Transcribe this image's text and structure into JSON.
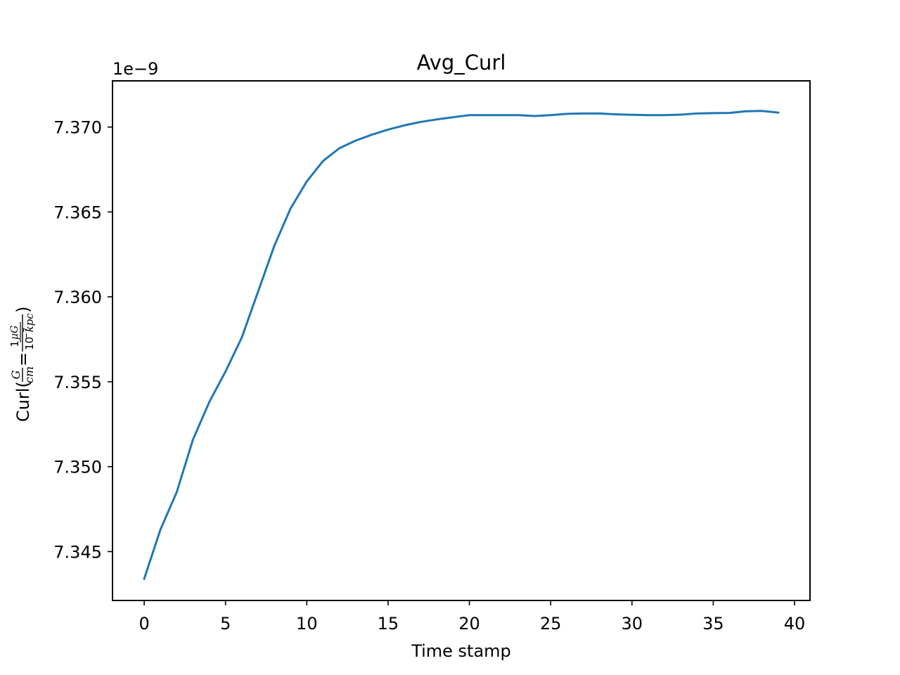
{
  "chart_data": {
    "type": "line",
    "title": "Avg_Curl",
    "xlabel": "Time stamp",
    "ylabel": {
      "prefix": "Curl(",
      "g": "G",
      "cm": "cm",
      "eq": "=",
      "one": "1",
      "mug": "μG",
      "tenpow": "10",
      "exp": "−7",
      "kpc": "kpc",
      "close": ")"
    },
    "offset_text": "1e−9",
    "xlim": [
      -1.95,
      40.95
    ],
    "ylim": [
      7.34212,
      7.37272
    ],
    "xticks": [
      0,
      5,
      10,
      15,
      20,
      25,
      30,
      35,
      40
    ],
    "xtick_labels": [
      "0",
      "5",
      "10",
      "15",
      "20",
      "25",
      "30",
      "35",
      "40"
    ],
    "yticks": [
      7.345,
      7.35,
      7.355,
      7.36,
      7.365,
      7.37
    ],
    "ytick_labels": [
      "7.345",
      "7.350",
      "7.355",
      "7.360",
      "7.365",
      "7.370"
    ],
    "series": [
      {
        "color": "#1f77b4",
        "x": [
          0,
          1,
          2,
          3,
          4,
          5,
          6,
          7,
          8,
          9,
          10,
          11,
          12,
          13,
          14,
          15,
          16,
          17,
          18,
          19,
          20,
          21,
          22,
          23,
          24,
          25,
          26,
          27,
          28,
          29,
          30,
          31,
          32,
          33,
          34,
          35,
          36,
          37,
          38,
          39
        ],
        "y": [
          7.3434,
          7.3463,
          7.3485,
          7.3516,
          7.3538,
          7.3556,
          7.3576,
          7.3603,
          7.363,
          7.3652,
          7.3668,
          7.368,
          7.36875,
          7.3692,
          7.36955,
          7.36985,
          7.3701,
          7.3703,
          7.37045,
          7.37058,
          7.3707,
          7.3707,
          7.3707,
          7.3707,
          7.37065,
          7.3707,
          7.37078,
          7.3708,
          7.3708,
          7.37075,
          7.37072,
          7.3707,
          7.3707,
          7.37073,
          7.3708,
          7.37082,
          7.37083,
          7.37093,
          7.37095,
          7.37085
        ]
      }
    ]
  }
}
